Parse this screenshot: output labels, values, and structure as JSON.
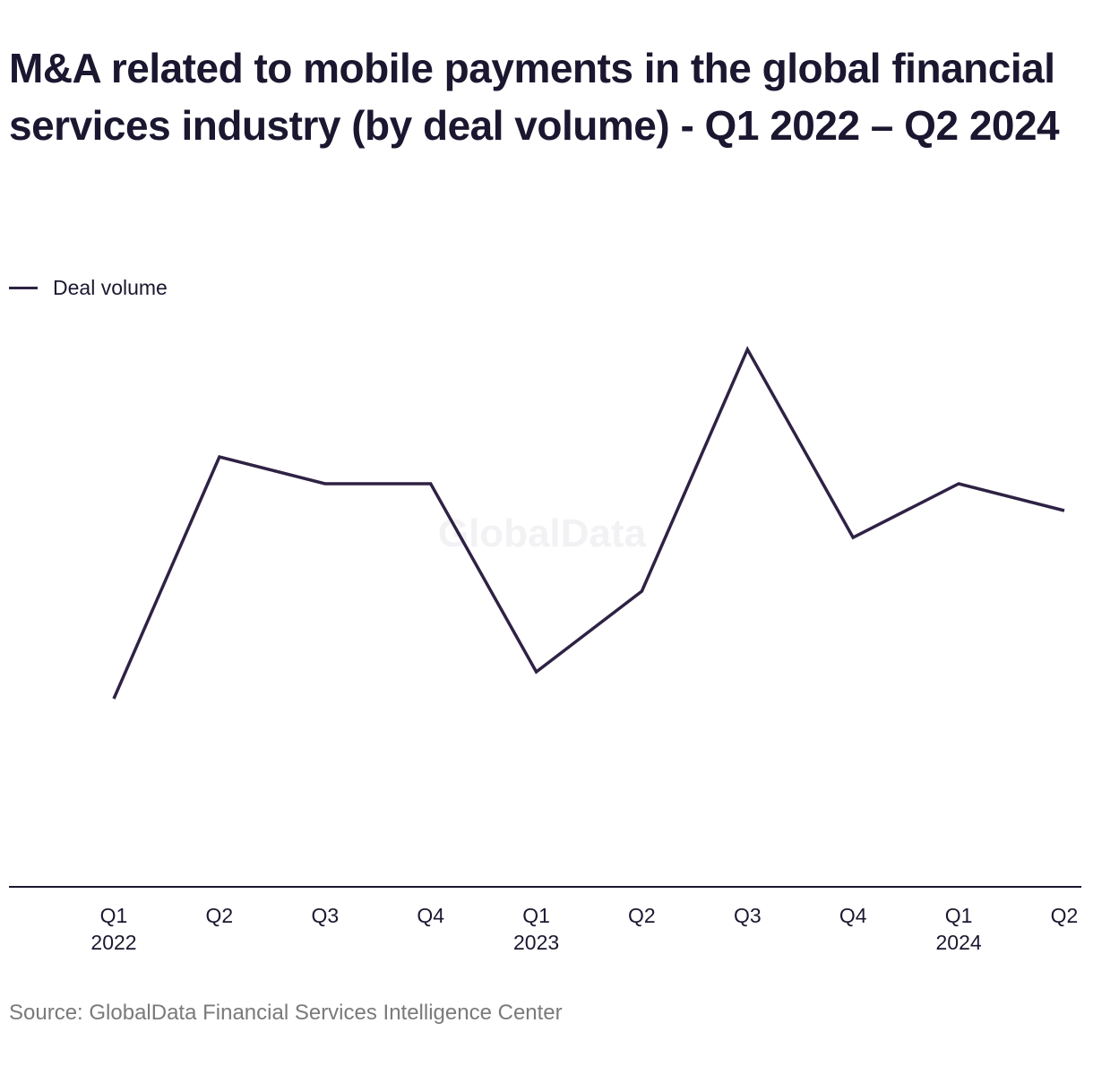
{
  "title": "M&A related to mobile payments in the global financial services industry (by deal volume) - Q1 2022 – Q2 2024",
  "legend": {
    "label": "Deal volume",
    "color": "#2e2244"
  },
  "watermark": "GlobalData",
  "source": "Source: GlobalData Financial Services Intelligence Center",
  "chart_data": {
    "type": "line",
    "title": "M&A related to mobile payments in the global financial services industry (by deal volume) - Q1 2022 – Q2 2024",
    "categories": [
      "Q1 2022",
      "Q2 2022",
      "Q3 2022",
      "Q4 2022",
      "Q1 2023",
      "Q2 2023",
      "Q3 2023",
      "Q4 2023",
      "Q1 2024",
      "Q2 2024"
    ],
    "tick_labels": [
      [
        "Q1",
        "2022"
      ],
      [
        "Q2",
        ""
      ],
      [
        "Q3",
        ""
      ],
      [
        "Q4",
        ""
      ],
      [
        "Q1",
        "2023"
      ],
      [
        "Q2",
        ""
      ],
      [
        "Q3",
        ""
      ],
      [
        "Q4",
        ""
      ],
      [
        "Q1",
        "2024"
      ],
      [
        "Q2",
        ""
      ]
    ],
    "series": [
      {
        "name": "Deal volume",
        "color": "#2e2244",
        "values": [
          7,
          16,
          15,
          15,
          8,
          11,
          20,
          13,
          15,
          14
        ]
      }
    ],
    "ylim": [
      0,
      33
    ],
    "xlabel": "",
    "ylabel": "",
    "grid": false,
    "legend_position": "top-left"
  }
}
